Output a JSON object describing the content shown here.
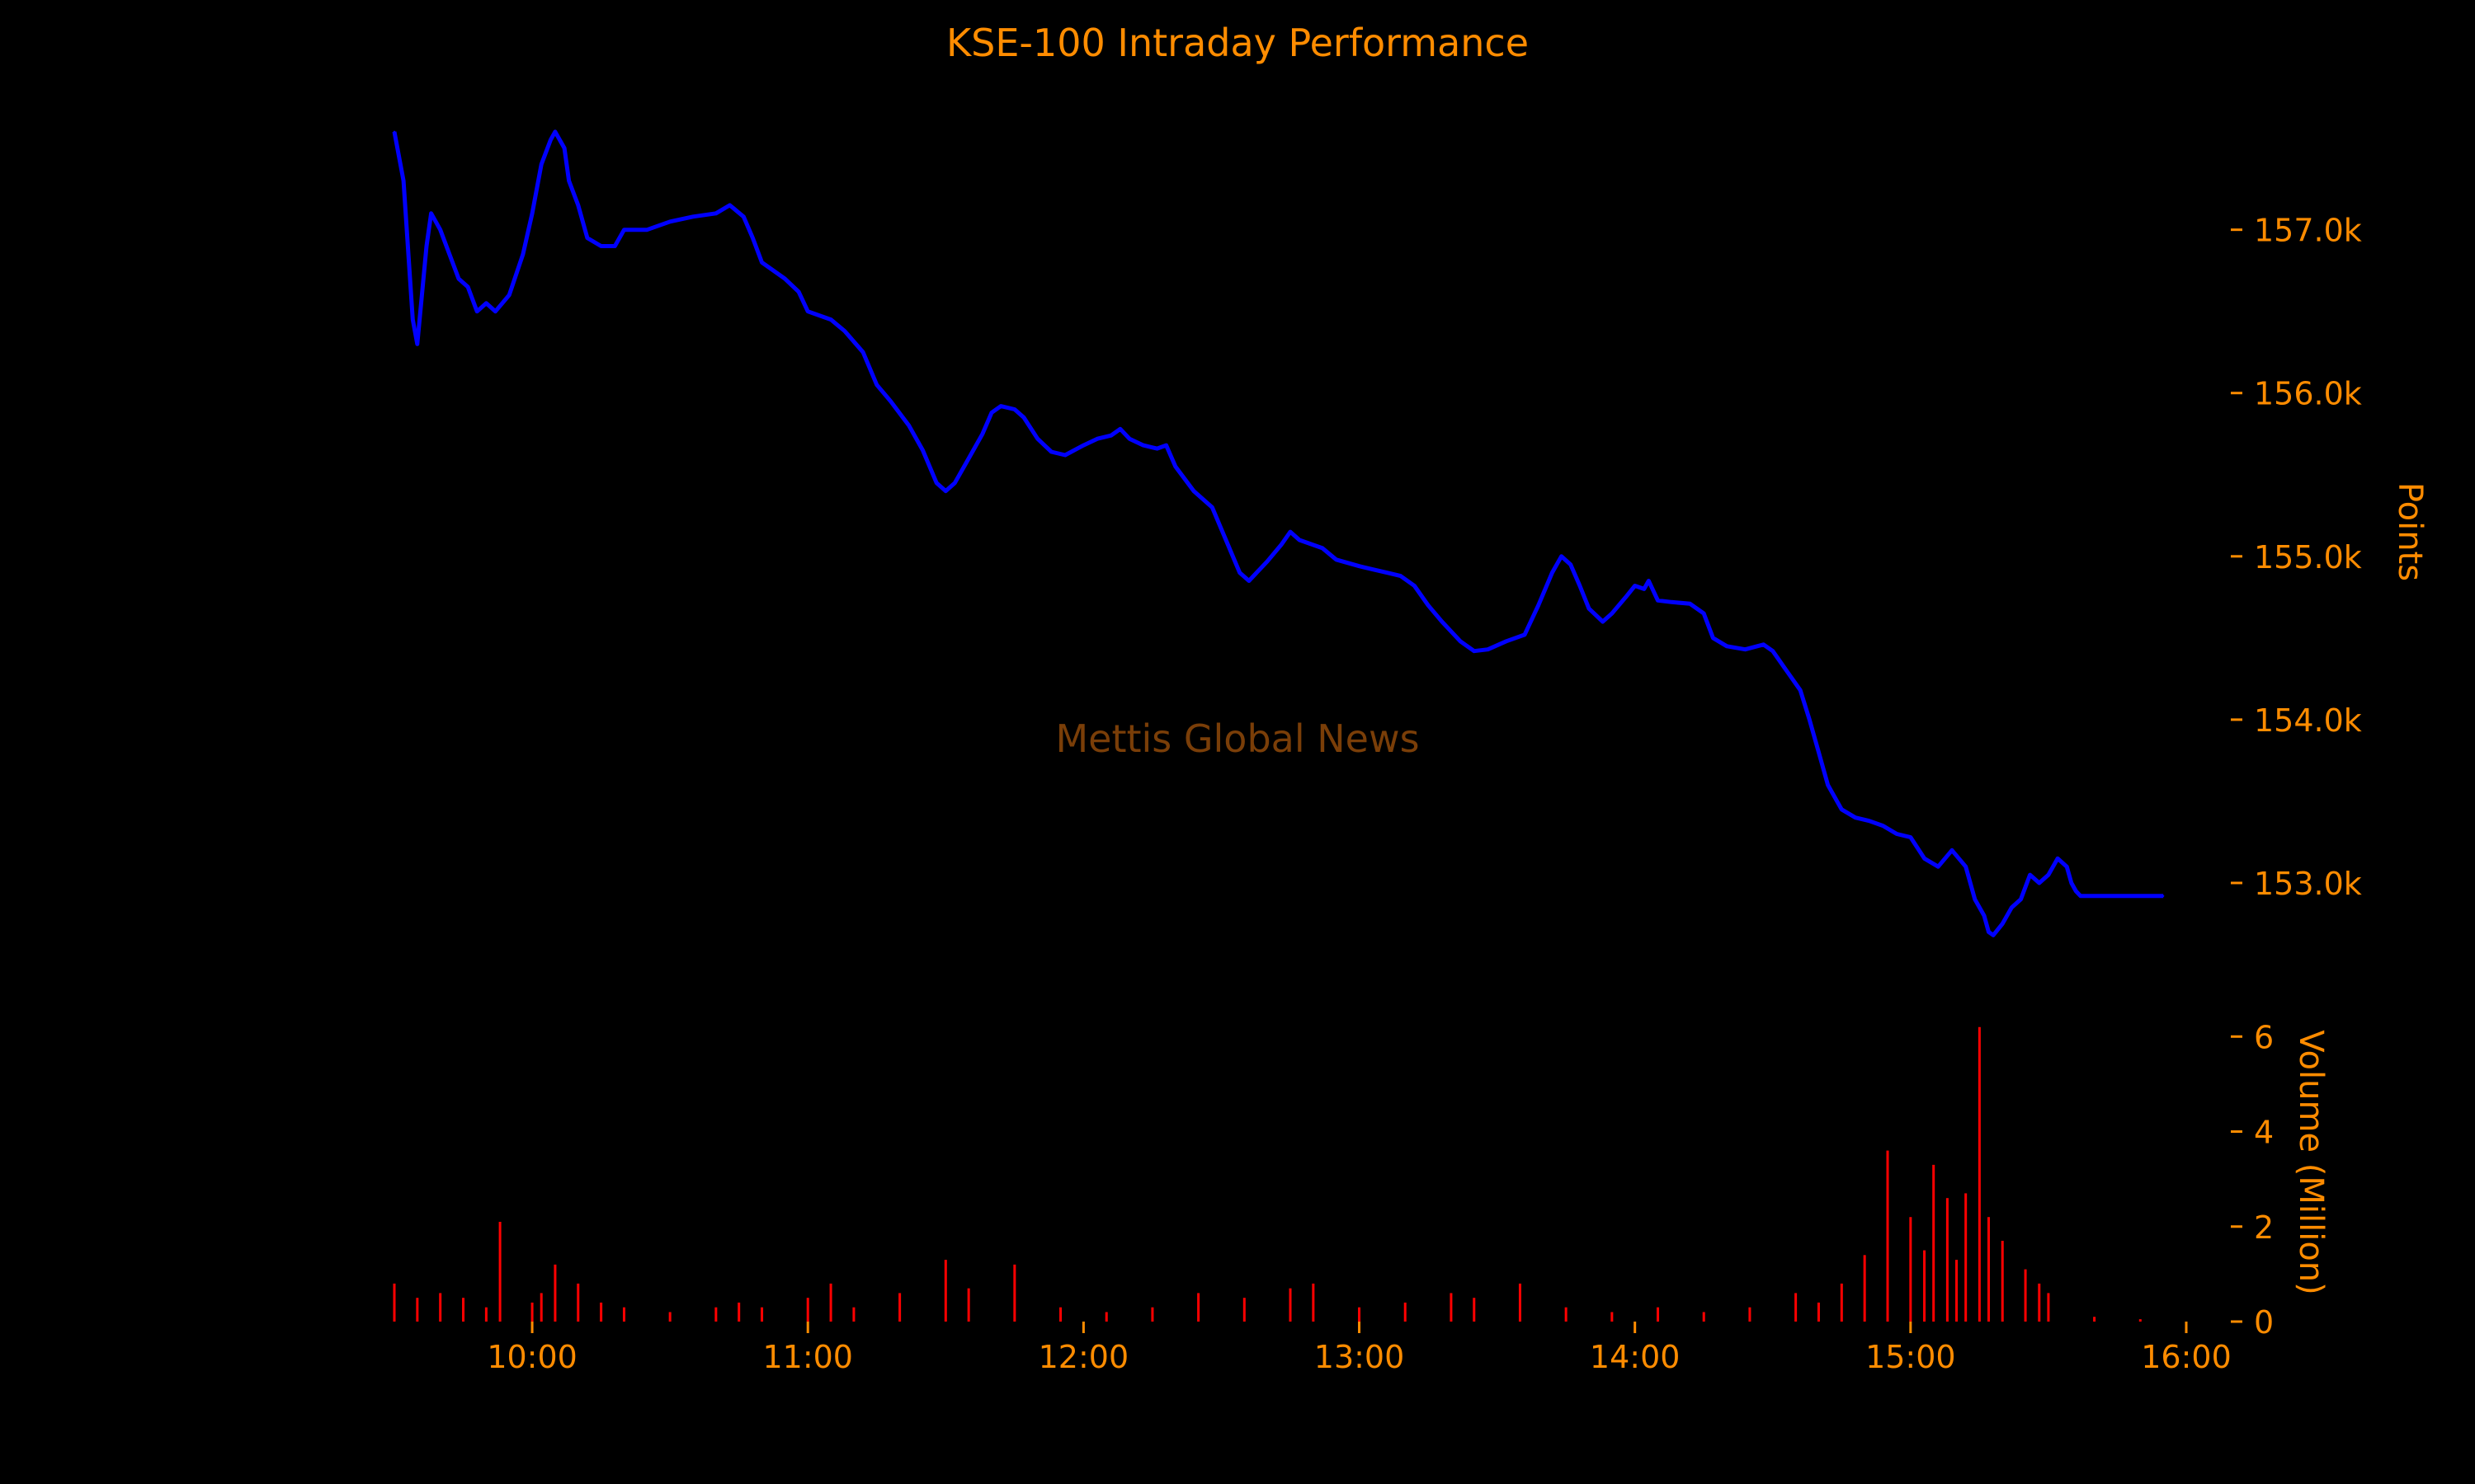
{
  "chart_data": {
    "type": "line",
    "title": "KSE-100 Intraday Performance",
    "watermark": "Mettis Global News",
    "colors": {
      "background": "#000000",
      "text": "#FF8C00",
      "price_line": "#0000FF",
      "volume_bars": "#FF0000",
      "watermark": "#7A3E08"
    },
    "x_axis": {
      "type": "time",
      "ticks": [
        "10:00",
        "11:00",
        "12:00",
        "13:00",
        "14:00",
        "15:00",
        "16:00"
      ],
      "range": [
        "09:30",
        "16:00"
      ]
    },
    "price_panel": {
      "ylabel": "Points",
      "ylim": [
        152500,
        157700
      ],
      "yticks": [
        153000,
        154000,
        155000,
        156000,
        157000
      ],
      "ytick_labels": [
        "153.0k",
        "154.0k",
        "155.0k",
        "156.0k",
        "157.0k"
      ],
      "series": [
        {
          "points": [
            [
              "09:30",
              157600
            ],
            [
              "09:32",
              157300
            ],
            [
              "09:34",
              156450
            ],
            [
              "09:35",
              156300
            ],
            [
              "09:37",
              156900
            ],
            [
              "09:38",
              157100
            ],
            [
              "09:40",
              157000
            ],
            [
              "09:42",
              156850
            ],
            [
              "09:44",
              156700
            ],
            [
              "09:46",
              156650
            ],
            [
              "09:48",
              156500
            ],
            [
              "09:50",
              156550
            ],
            [
              "09:52",
              156500
            ],
            [
              "09:55",
              156600
            ],
            [
              "09:58",
              156850
            ],
            [
              "10:00",
              157100
            ],
            [
              "10:02",
              157400
            ],
            [
              "10:04",
              157550
            ],
            [
              "10:05",
              157600
            ],
            [
              "10:07",
              157500
            ],
            [
              "10:08",
              157300
            ],
            [
              "10:10",
              157150
            ],
            [
              "10:12",
              156950
            ],
            [
              "10:15",
              156900
            ],
            [
              "10:18",
              156900
            ],
            [
              "10:20",
              157000
            ],
            [
              "10:25",
              157000
            ],
            [
              "10:30",
              157050
            ],
            [
              "10:35",
              157080
            ],
            [
              "10:40",
              157100
            ],
            [
              "10:43",
              157150
            ],
            [
              "10:46",
              157080
            ],
            [
              "10:48",
              156950
            ],
            [
              "10:50",
              156800
            ],
            [
              "10:55",
              156700
            ],
            [
              "10:58",
              156620
            ],
            [
              "11:00",
              156500
            ],
            [
              "11:05",
              156450
            ],
            [
              "11:08",
              156380
            ],
            [
              "11:12",
              156250
            ],
            [
              "11:15",
              156050
            ],
            [
              "11:18",
              155950
            ],
            [
              "11:22",
              155800
            ],
            [
              "11:25",
              155650
            ],
            [
              "11:28",
              155450
            ],
            [
              "11:30",
              155400
            ],
            [
              "11:32",
              155450
            ],
            [
              "11:35",
              155600
            ],
            [
              "11:38",
              155750
            ],
            [
              "11:40",
              155880
            ],
            [
              "11:42",
              155920
            ],
            [
              "11:45",
              155900
            ],
            [
              "11:47",
              155850
            ],
            [
              "11:50",
              155720
            ],
            [
              "11:53",
              155640
            ],
            [
              "11:56",
              155620
            ],
            [
              "12:00",
              155680
            ],
            [
              "12:03",
              155720
            ],
            [
              "12:06",
              155740
            ],
            [
              "12:08",
              155780
            ],
            [
              "12:10",
              155720
            ],
            [
              "12:13",
              155680
            ],
            [
              "12:16",
              155660
            ],
            [
              "12:18",
              155680
            ],
            [
              "12:20",
              155550
            ],
            [
              "12:24",
              155400
            ],
            [
              "12:28",
              155300
            ],
            [
              "12:31",
              155100
            ],
            [
              "12:34",
              154900
            ],
            [
              "12:36",
              154850
            ],
            [
              "12:40",
              154970
            ],
            [
              "12:43",
              155070
            ],
            [
              "12:45",
              155150
            ],
            [
              "12:47",
              155100
            ],
            [
              "12:52",
              155050
            ],
            [
              "12:55",
              154980
            ],
            [
              "13:00",
              154940
            ],
            [
              "13:03",
              154920
            ],
            [
              "13:06",
              154900
            ],
            [
              "13:09",
              154880
            ],
            [
              "13:12",
              154820
            ],
            [
              "13:15",
              154700
            ],
            [
              "13:18",
              154600
            ],
            [
              "13:22",
              154480
            ],
            [
              "13:25",
              154420
            ],
            [
              "13:28",
              154430
            ],
            [
              "13:32",
              154480
            ],
            [
              "13:36",
              154520
            ],
            [
              "13:39",
              154700
            ],
            [
              "13:42",
              154900
            ],
            [
              "13:44",
              155000
            ],
            [
              "13:46",
              154950
            ],
            [
              "13:48",
              154820
            ],
            [
              "13:50",
              154680
            ],
            [
              "13:53",
              154600
            ],
            [
              "13:55",
              154650
            ],
            [
              "13:58",
              154750
            ],
            [
              "14:00",
              154820
            ],
            [
              "14:02",
              154800
            ],
            [
              "14:03",
              154850
            ],
            [
              "14:05",
              154730
            ],
            [
              "14:08",
              154720
            ],
            [
              "14:12",
              154710
            ],
            [
              "14:15",
              154650
            ],
            [
              "14:17",
              154500
            ],
            [
              "14:20",
              154450
            ],
            [
              "14:24",
              154430
            ],
            [
              "14:28",
              154460
            ],
            [
              "14:30",
              154420
            ],
            [
              "14:33",
              154300
            ],
            [
              "14:36",
              154180
            ],
            [
              "14:38",
              154000
            ],
            [
              "14:40",
              153800
            ],
            [
              "14:42",
              153600
            ],
            [
              "14:45",
              153450
            ],
            [
              "14:48",
              153400
            ],
            [
              "14:51",
              153380
            ],
            [
              "14:54",
              153350
            ],
            [
              "14:57",
              153300
            ],
            [
              "15:00",
              153280
            ],
            [
              "15:03",
              153150
            ],
            [
              "15:06",
              153100
            ],
            [
              "15:09",
              153200
            ],
            [
              "15:12",
              153100
            ],
            [
              "15:14",
              152900
            ],
            [
              "15:16",
              152800
            ],
            [
              "15:17",
              152700
            ],
            [
              "15:18",
              152680
            ],
            [
              "15:20",
              152750
            ],
            [
              "15:22",
              152850
            ],
            [
              "15:24",
              152900
            ],
            [
              "15:26",
              153050
            ],
            [
              "15:28",
              153000
            ],
            [
              "15:30",
              153050
            ],
            [
              "15:32",
              153150
            ],
            [
              "15:34",
              153100
            ],
            [
              "15:35",
              153000
            ],
            [
              "15:36",
              152950
            ],
            [
              "15:37",
              152920
            ],
            [
              "15:40",
              152920
            ],
            [
              "15:45",
              152920
            ],
            [
              "15:50",
              152920
            ],
            [
              "15:55",
              152920
            ]
          ]
        }
      ]
    },
    "volume_panel": {
      "ylabel": "Volume (Million)",
      "ylim": [
        0,
        6.3
      ],
      "yticks": [
        0,
        2,
        4,
        6
      ],
      "ytick_labels": [
        "0",
        "2",
        "4",
        "6"
      ],
      "series": [
        {
          "points": [
            [
              "09:30",
              0.8
            ],
            [
              "09:35",
              0.5
            ],
            [
              "09:40",
              0.6
            ],
            [
              "09:45",
              0.5
            ],
            [
              "09:50",
              0.3
            ],
            [
              "09:53",
              2.1
            ],
            [
              "10:00",
              0.4
            ],
            [
              "10:02",
              0.6
            ],
            [
              "10:05",
              1.2
            ],
            [
              "10:10",
              0.8
            ],
            [
              "10:15",
              0.4
            ],
            [
              "10:20",
              0.3
            ],
            [
              "10:30",
              0.2
            ],
            [
              "10:40",
              0.3
            ],
            [
              "10:45",
              0.4
            ],
            [
              "10:50",
              0.3
            ],
            [
              "11:00",
              0.5
            ],
            [
              "11:05",
              0.8
            ],
            [
              "11:10",
              0.3
            ],
            [
              "11:20",
              0.6
            ],
            [
              "11:30",
              1.3
            ],
            [
              "11:35",
              0.7
            ],
            [
              "11:45",
              1.2
            ],
            [
              "11:55",
              0.3
            ],
            [
              "12:05",
              0.2
            ],
            [
              "12:15",
              0.3
            ],
            [
              "12:25",
              0.6
            ],
            [
              "12:35",
              0.5
            ],
            [
              "12:45",
              0.7
            ],
            [
              "12:50",
              0.8
            ],
            [
              "13:00",
              0.3
            ],
            [
              "13:10",
              0.4
            ],
            [
              "13:20",
              0.6
            ],
            [
              "13:25",
              0.5
            ],
            [
              "13:35",
              0.8
            ],
            [
              "13:45",
              0.3
            ],
            [
              "13:55",
              0.2
            ],
            [
              "14:05",
              0.3
            ],
            [
              "14:15",
              0.2
            ],
            [
              "14:25",
              0.3
            ],
            [
              "14:35",
              0.6
            ],
            [
              "14:40",
              0.4
            ],
            [
              "14:45",
              0.8
            ],
            [
              "14:50",
              1.4
            ],
            [
              "14:55",
              3.6
            ],
            [
              "15:00",
              2.2
            ],
            [
              "15:03",
              1.5
            ],
            [
              "15:05",
              3.3
            ],
            [
              "15:08",
              2.6
            ],
            [
              "15:10",
              1.3
            ],
            [
              "15:12",
              2.7
            ],
            [
              "15:15",
              6.2
            ],
            [
              "15:17",
              2.2
            ],
            [
              "15:20",
              1.7
            ],
            [
              "15:25",
              1.1
            ],
            [
              "15:28",
              0.8
            ],
            [
              "15:30",
              0.6
            ],
            [
              "15:40",
              0.1
            ],
            [
              "15:50",
              0.05
            ]
          ]
        }
      ]
    }
  }
}
